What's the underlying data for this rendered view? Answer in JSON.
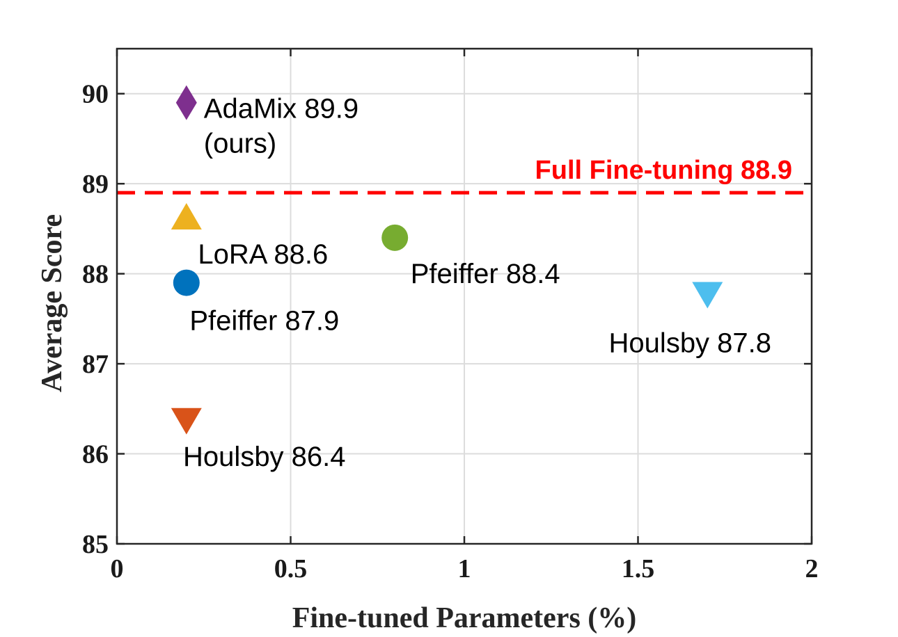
{
  "chart_data": {
    "type": "scatter",
    "xlabel": "Fine-tuned Parameters (%)",
    "ylabel": "Average Score",
    "xlim": [
      0,
      2
    ],
    "ylim": [
      85,
      90.5
    ],
    "xticks": [
      0,
      0.5,
      1,
      1.5,
      2
    ],
    "xtick_labels": [
      "0",
      "0.5",
      "1",
      "1.5",
      "2"
    ],
    "yticks": [
      85,
      86,
      87,
      88,
      89,
      90
    ],
    "ytick_labels": [
      "85",
      "86",
      "87",
      "88",
      "89",
      "90"
    ],
    "grid": true,
    "points": [
      {
        "x": 0.2,
        "y": 89.9,
        "marker": "diamond",
        "color": "#7E2F8E",
        "label_lines": [
          "AdaMix 89.9",
          "(ours)"
        ]
      },
      {
        "x": 0.2,
        "y": 88.6,
        "marker": "triangle-up",
        "color": "#EDB120",
        "label_lines": [
          "LoRA 88.6"
        ]
      },
      {
        "x": 0.2,
        "y": 87.9,
        "marker": "circle",
        "color": "#0072BD",
        "label_lines": [
          "Pfeiffer 87.9"
        ]
      },
      {
        "x": 0.2,
        "y": 86.4,
        "marker": "triangle-down",
        "color": "#D95319",
        "label_lines": [
          "Houlsby 86.4"
        ]
      },
      {
        "x": 0.8,
        "y": 88.4,
        "marker": "circle",
        "color": "#77AC30",
        "label_lines": [
          "Pfeiffer 88.4"
        ]
      },
      {
        "x": 1.7,
        "y": 87.8,
        "marker": "triangle-down",
        "color": "#4DBEEE",
        "label_lines": [
          "Houlsby 87.8"
        ]
      }
    ],
    "reference_line": {
      "y": 88.9,
      "label": "Full Fine-tuning 88.9",
      "color": "#FF0000",
      "style": "dashed"
    }
  }
}
